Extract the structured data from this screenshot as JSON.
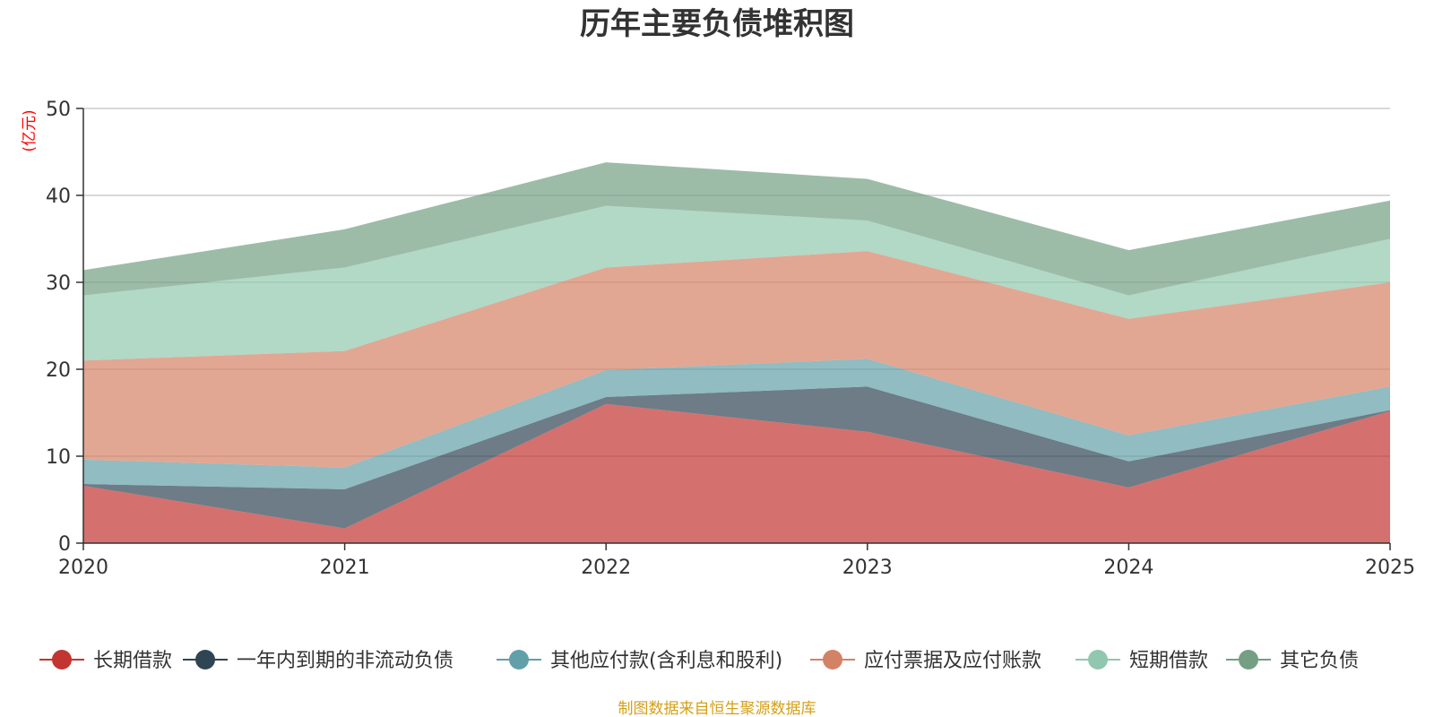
{
  "chart_data": {
    "type": "area",
    "stacked": true,
    "title": "历年主要负债堆积图",
    "ylabel": "(亿元)",
    "xlabel": "",
    "categories": [
      "2020",
      "2021",
      "2022",
      "2023",
      "2024",
      "2025"
    ],
    "ylim": [
      0,
      50
    ],
    "yticks": [
      0,
      10,
      20,
      30,
      40,
      50
    ],
    "grid": true,
    "legend_position": "bottom",
    "series": [
      {
        "name": "长期借款",
        "color": "#c23531",
        "values": [
          6.6,
          1.7,
          16.0,
          12.8,
          6.4,
          15.2
        ]
      },
      {
        "name": "一年内到期的非流动负债",
        "color": "#2f4554",
        "values": [
          0.2,
          4.5,
          0.8,
          5.2,
          3.0,
          0.1
        ]
      },
      {
        "name": "其他应付款(含利息和股利)",
        "color": "#61a0a8",
        "values": [
          2.8,
          2.5,
          3.1,
          3.2,
          3.0,
          2.7
        ]
      },
      {
        "name": "应付票据及应付账款",
        "color": "#d48265",
        "values": [
          11.4,
          13.4,
          11.8,
          12.4,
          13.4,
          12.0
        ]
      },
      {
        "name": "短期借款",
        "color": "#91c7ae",
        "values": [
          7.5,
          9.6,
          7.1,
          3.5,
          2.7,
          5.0
        ]
      },
      {
        "name": "其它负债",
        "color": "#749f83",
        "values": [
          2.9,
          4.4,
          5.0,
          4.8,
          5.2,
          4.4
        ]
      }
    ]
  },
  "source_note": "制图数据来自恒生聚源数据库",
  "colors": {
    "title": "#333333",
    "axis": "#333333",
    "grid": "#cccccc",
    "unit_label": "#ff0000",
    "source_note": "#d4a017"
  }
}
